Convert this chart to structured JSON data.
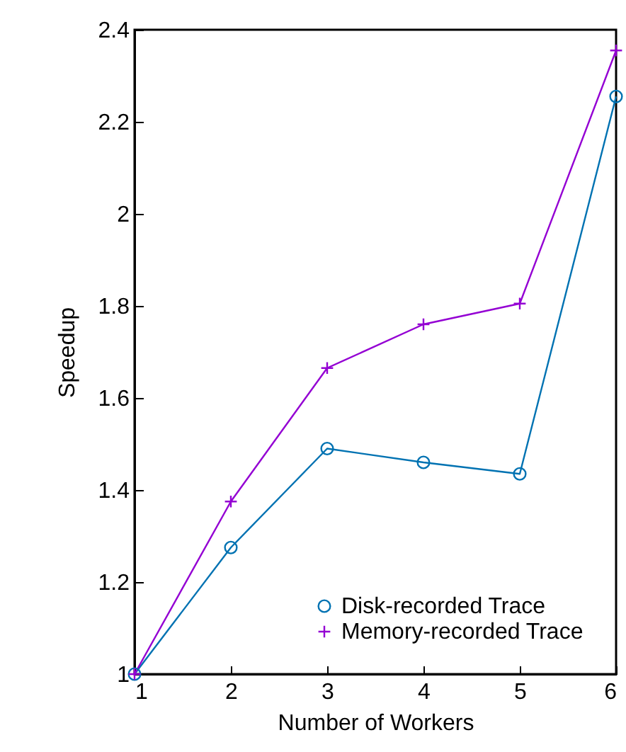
{
  "chart_data": {
    "type": "line",
    "xlabel": "Number of Workers",
    "ylabel": "Speedup",
    "x": [
      1,
      2,
      3,
      4,
      5,
      6
    ],
    "series": [
      {
        "name": "Disk-recorded Trace",
        "color": "#0072b2",
        "marker": "circle",
        "values": [
          1,
          1.275,
          1.49,
          1.46,
          1.435,
          2.255
        ]
      },
      {
        "name": "Memory-recorded Trace",
        "color": "#9400d3",
        "marker": "cross",
        "values": [
          1,
          1.375,
          1.665,
          1.76,
          1.805,
          2.355
        ]
      }
    ],
    "xlim": [
      1,
      6
    ],
    "xticks": [
      1,
      2,
      3,
      4,
      5,
      6
    ],
    "ylim": [
      1,
      2.4
    ],
    "yticks": [
      1,
      1.2,
      1.4,
      1.6,
      1.8,
      2,
      2.2,
      2.4
    ],
    "grid": false,
    "legend": "bottom right",
    "line_style": "solid"
  }
}
